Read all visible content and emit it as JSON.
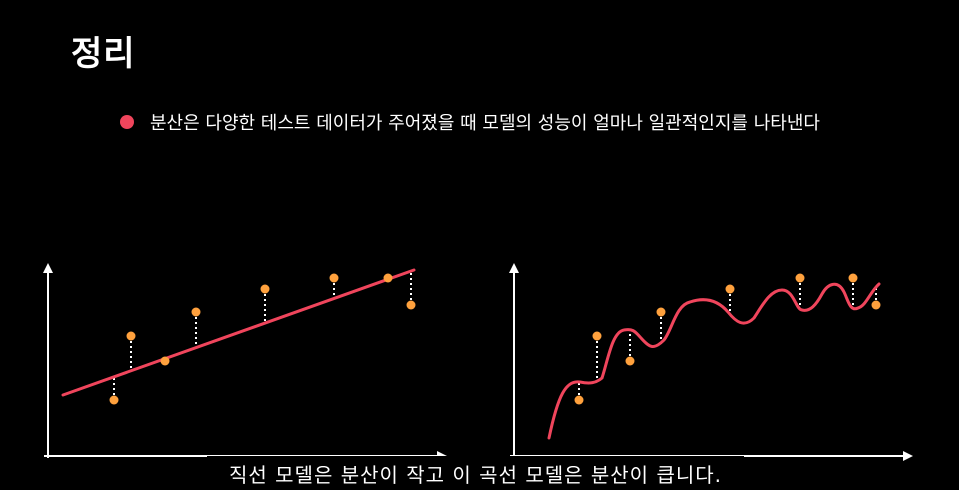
{
  "title": "정리",
  "bullet": {
    "text": "분산은 다양한 테스트 데이터가 주어졌을 때 모델의 성능이 얼마나 일관적인지를 나타낸다",
    "color": "#f0455c"
  },
  "caption": "직선 모델은 분산이 작고 이 곡선 모델은 분산이 큽니다.",
  "colors": {
    "background": "#000000",
    "axis": "#ffffff",
    "model_line": "#f0455c",
    "data_point": "#ffa13d",
    "residual": "#ffffff"
  },
  "diagrams": [
    {
      "model": "straight-line",
      "shows": "low variance"
    },
    {
      "model": "wiggly-curve",
      "shows": "high variance"
    }
  ]
}
